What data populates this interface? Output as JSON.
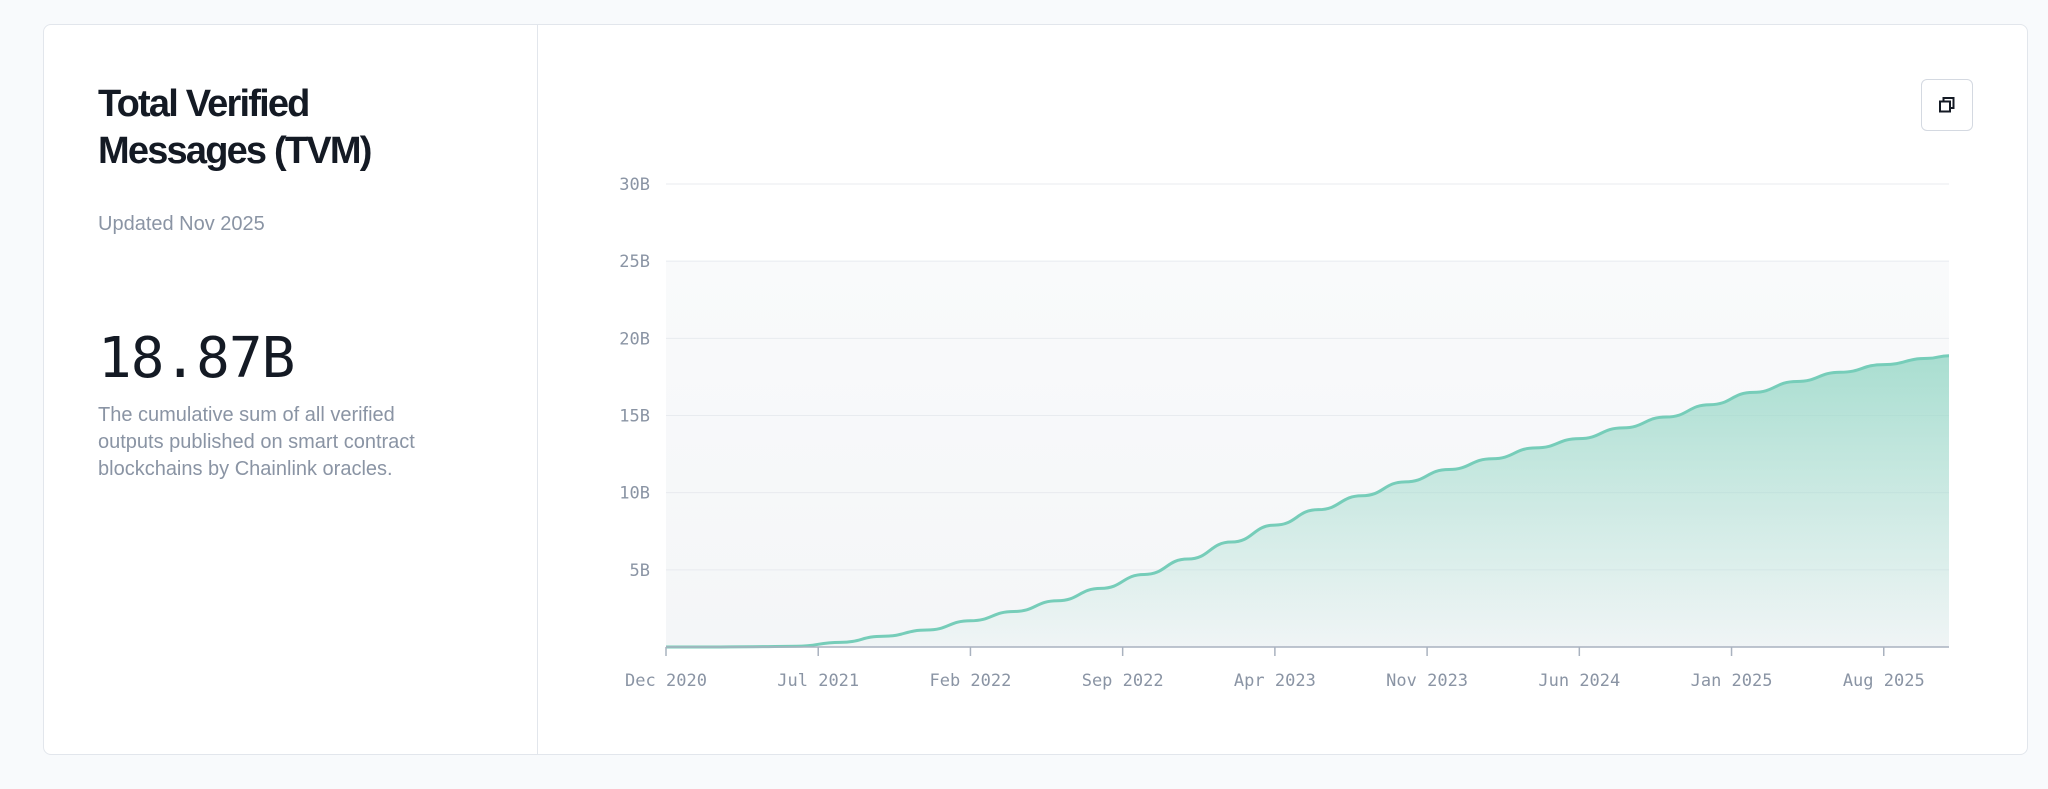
{
  "panel": {
    "title": "Total Verified Messages (TVM)",
    "updated": "Updated Nov 2025",
    "value": "18.87B",
    "description": "The cumulative sum of all verified outputs published on smart contract blockchains by Chainlink oracles."
  },
  "toolbar": {
    "expand_icon": "expand-window-icon"
  },
  "colors": {
    "line": "#76cdb9",
    "area": "#9bd9c9"
  },
  "chart_data": {
    "type": "area",
    "title": "",
    "xlabel": "",
    "ylabel": "",
    "x_ticks": [
      "Dec 2020",
      "Jul 2021",
      "Feb 2022",
      "Sep 2022",
      "Apr 2023",
      "Nov 2023",
      "Jun 2024",
      "Jan 2025",
      "Aug 2025"
    ],
    "y_ticks": [
      "5B",
      "10B",
      "15B",
      "20B",
      "25B",
      "30B"
    ],
    "ylim": [
      0,
      30
    ],
    "grid": true,
    "legend": "none",
    "series": [
      {
        "unit": "B",
        "x": [
          "Dec 2020",
          "Feb 2021",
          "Apr 2021",
          "Jun 2021",
          "Aug 2021",
          "Oct 2021",
          "Dec 2021",
          "Feb 2022",
          "Apr 2022",
          "Jun 2022",
          "Aug 2022",
          "Oct 2022",
          "Dec 2022",
          "Feb 2023",
          "Apr 2023",
          "Jun 2023",
          "Aug 2023",
          "Oct 2023",
          "Dec 2023",
          "Feb 2024",
          "Apr 2024",
          "Jun 2024",
          "Aug 2024",
          "Oct 2024",
          "Dec 2024",
          "Feb 2025",
          "Apr 2025",
          "Jun 2025",
          "Aug 2025",
          "Oct 2025",
          "Nov 2025"
        ],
        "values": [
          0.0,
          0.0,
          0.02,
          0.05,
          0.3,
          0.7,
          1.1,
          1.7,
          2.3,
          3.0,
          3.8,
          4.7,
          5.7,
          6.8,
          7.9,
          8.9,
          9.8,
          10.7,
          11.5,
          12.2,
          12.9,
          13.5,
          14.2,
          14.9,
          15.7,
          16.5,
          17.2,
          17.8,
          18.3,
          18.7,
          18.87
        ]
      }
    ]
  }
}
